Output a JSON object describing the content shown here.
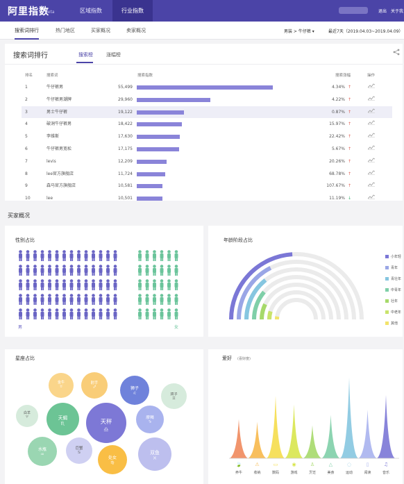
{
  "header": {
    "logo": "阿里指数",
    "beta": "beta",
    "nav": [
      "区域指数",
      "行业指数"
    ],
    "logout": "退出",
    "about": "关于我"
  },
  "subnav": {
    "tabs": [
      "搜索词排行",
      "热门地区",
      "买家概况",
      "卖家概况"
    ],
    "breadcrumb": "男装 > 牛仔裤 ▾",
    "date_range": "最近7天（2019.04.03~2019.04.09） ▾"
  },
  "search_panel": {
    "title": "搜索词排行",
    "tabs": [
      "搜索榜",
      "涨幅榜"
    ],
    "columns": [
      "排名",
      "搜索词",
      "搜索指数",
      "搜索涨幅",
      "操作"
    ],
    "rows": [
      {
        "rank": "1",
        "keyword": "牛仔裤男",
        "index": "55,499",
        "value": 55499,
        "growth": "4.34%",
        "dir": "up"
      },
      {
        "rank": "2",
        "keyword": "牛仔裤男潮牌",
        "index": "29,960",
        "value": 29960,
        "growth": "4.22%",
        "dir": "up"
      },
      {
        "rank": "3",
        "keyword": "男士牛仔裤",
        "index": "19,122",
        "value": 19122,
        "growth": "0.87%",
        "dir": "up"
      },
      {
        "rank": "4",
        "keyword": "破洞牛仔裤男",
        "index": "18,422",
        "value": 18422,
        "growth": "15.97%",
        "dir": "up"
      },
      {
        "rank": "5",
        "keyword": "李维斯",
        "index": "17,630",
        "value": 17630,
        "growth": "22.42%",
        "dir": "up"
      },
      {
        "rank": "6",
        "keyword": "牛仔裤男宽松",
        "index": "17,175",
        "value": 17175,
        "growth": "5.67%",
        "dir": "up"
      },
      {
        "rank": "7",
        "keyword": "levis",
        "index": "12,209",
        "value": 12209,
        "growth": "20.26%",
        "dir": "up"
      },
      {
        "rank": "8",
        "keyword": "lee官方旗舰店",
        "index": "11,724",
        "value": 11724,
        "growth": "68.78%",
        "dir": "up"
      },
      {
        "rank": "9",
        "keyword": "森马官方旗舰店",
        "index": "10,581",
        "value": 10581,
        "growth": "107.67%",
        "dir": "up"
      },
      {
        "rank": "10",
        "keyword": "lee",
        "index": "10,501",
        "value": 10501,
        "growth": "11.19%",
        "dir": "down"
      }
    ]
  },
  "buyer": {
    "title": "买家概况",
    "gender": {
      "title": "性别占比",
      "male_label": "男",
      "female_label": "女",
      "male_share": 0.7,
      "male_color": "#6a65c4",
      "female_color": "#6bc49b"
    },
    "age": {
      "title": "年龄阶段占比",
      "legend": [
        {
          "label": "小年轻",
          "color": "#7b77d6",
          "share": 0.3
        },
        {
          "label": "青年",
          "color": "#9aa6e6",
          "share": 0.22
        },
        {
          "label": "青壮年",
          "color": "#86c6e0",
          "share": 0.18
        },
        {
          "label": "中青年",
          "color": "#7fcfa8",
          "share": 0.14
        },
        {
          "label": "壮年",
          "color": "#a6d96a",
          "share": 0.09
        },
        {
          "label": "中老年",
          "color": "#c9e36b",
          "share": 0.06
        },
        {
          "label": "其他",
          "color": "#f2e36b",
          "share": 0.03
        }
      ]
    },
    "zodiac": {
      "title": "星座占比",
      "items": [
        {
          "name": "金牛",
          "sym": "♉",
          "color": "#fad58a"
        },
        {
          "name": "射手",
          "sym": "♐",
          "color": "#f9cd78"
        },
        {
          "name": "狮子",
          "sym": "♌",
          "color": "#6f82db"
        },
        {
          "name": "双子",
          "sym": "♊",
          "color": "#d6ebdc"
        },
        {
          "name": "白羊",
          "sym": "♈",
          "color": "#d6ebdc"
        },
        {
          "name": "天蝎",
          "sym": "♏",
          "color": "#6cc495"
        },
        {
          "name": "天秤",
          "sym": "♎",
          "color": "#7d78d6"
        },
        {
          "name": "摩羯",
          "sym": "♑",
          "color": "#a9b3ee"
        },
        {
          "name": "水瓶",
          "sym": "♒",
          "color": "#9ad6b2"
        },
        {
          "name": "巨蟹",
          "sym": "♋",
          "color": "#cfd0f2"
        },
        {
          "name": "处女",
          "sym": "♍",
          "color": "#f9be45"
        },
        {
          "name": "双鱼",
          "sym": "♓",
          "color": "#bdbfee"
        }
      ]
    },
    "hobby": {
      "title": "爱好",
      "subtitle": "(喜好度)",
      "items": [
        {
          "label": "养牛",
          "icon": "🍃",
          "value": 0.45,
          "color": "#f08a5d"
        },
        {
          "label": "收纳",
          "icon": "⚠",
          "value": 0.42,
          "color": "#f7b84b"
        },
        {
          "label": "数码",
          "icon": "▭",
          "value": 0.72,
          "color": "#f5dd4b"
        },
        {
          "label": "游戏",
          "icon": "◉",
          "value": 0.62,
          "color": "#d8e64c"
        },
        {
          "label": "烹饪",
          "icon": "♙",
          "value": 0.38,
          "color": "#a6d96a"
        },
        {
          "label": "美食",
          "icon": "△",
          "value": 0.5,
          "color": "#7fcfa8"
        },
        {
          "label": "运动",
          "icon": "◌",
          "value": 0.93,
          "color": "#86c6e0"
        },
        {
          "label": "阅读",
          "icon": "▯",
          "value": 0.56,
          "color": "#a9b3ee"
        },
        {
          "label": "音乐",
          "icon": "♫",
          "value": 0.73,
          "color": "#7b77d6"
        }
      ]
    }
  }
}
